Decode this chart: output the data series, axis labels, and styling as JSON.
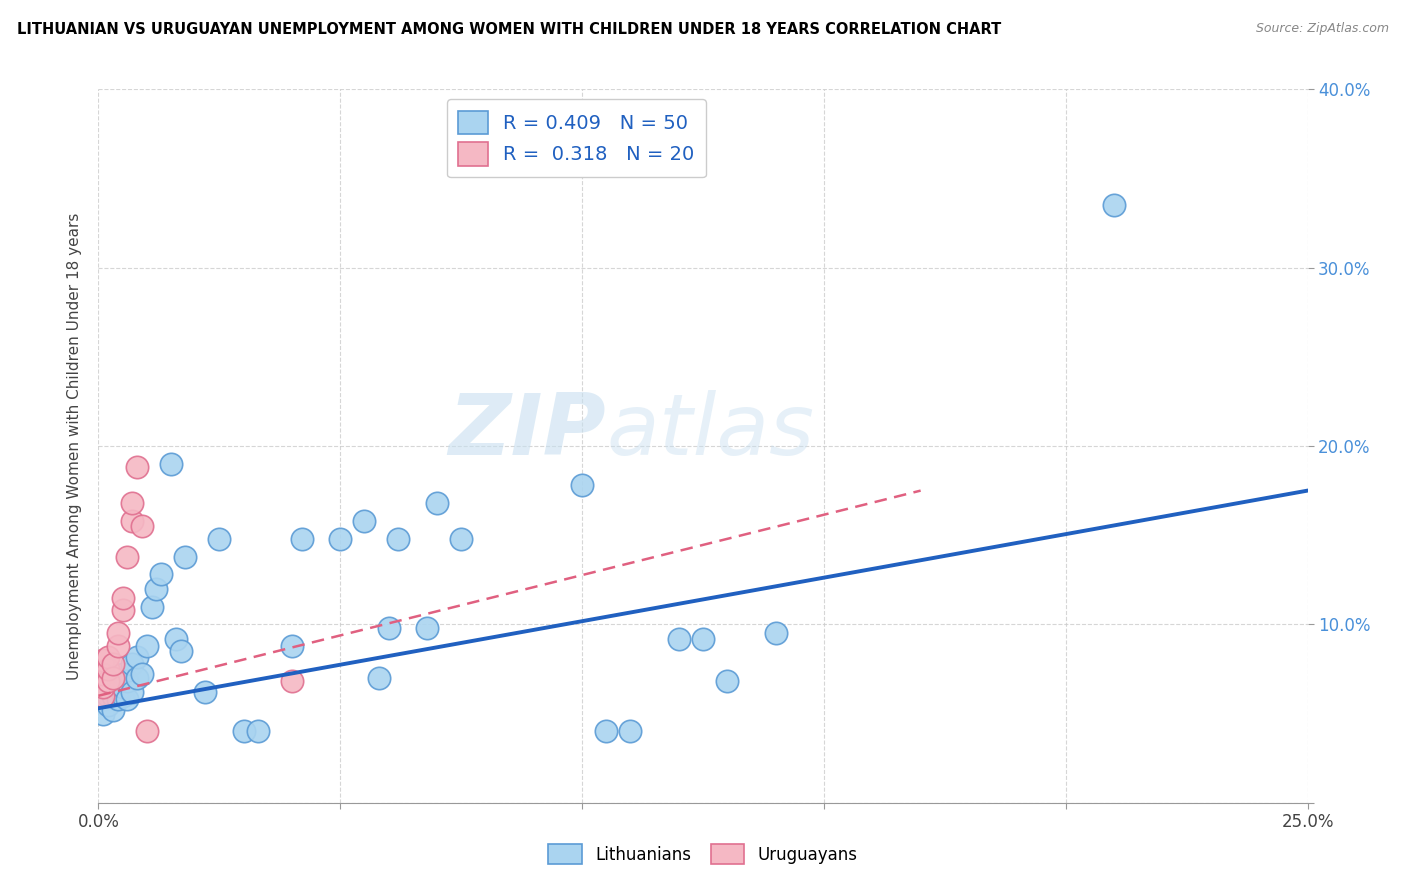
{
  "title": "LITHUANIAN VS URUGUAYAN UNEMPLOYMENT AMONG WOMEN WITH CHILDREN UNDER 18 YEARS CORRELATION CHART",
  "source": "Source: ZipAtlas.com",
  "ylabel": "Unemployment Among Women with Children Under 18 years",
  "xlim": [
    0.0,
    0.25
  ],
  "ylim": [
    0.0,
    0.4
  ],
  "legend_blue_r": "R = 0.409",
  "legend_blue_n": "N = 50",
  "legend_pink_r": "R =  0.318",
  "legend_pink_n": "N = 20",
  "blue_color": "#aad4f0",
  "pink_color": "#f5b8c4",
  "blue_edge_color": "#5b9bd5",
  "pink_edge_color": "#e07090",
  "blue_line_color": "#2060c0",
  "pink_line_color": "#e06080",
  "watermark_color": "#d5e8f5",
  "blue_x": [
    0.001,
    0.001,
    0.002,
    0.002,
    0.002,
    0.003,
    0.003,
    0.003,
    0.004,
    0.004,
    0.005,
    0.005,
    0.005,
    0.006,
    0.006,
    0.007,
    0.007,
    0.008,
    0.008,
    0.009,
    0.01,
    0.011,
    0.012,
    0.013,
    0.015,
    0.016,
    0.017,
    0.018,
    0.022,
    0.025,
    0.03,
    0.033,
    0.04,
    0.042,
    0.05,
    0.055,
    0.058,
    0.06,
    0.062,
    0.068,
    0.07,
    0.075,
    0.1,
    0.105,
    0.11,
    0.12,
    0.125,
    0.13,
    0.14,
    0.21
  ],
  "blue_y": [
    0.05,
    0.058,
    0.055,
    0.06,
    0.068,
    0.052,
    0.06,
    0.065,
    0.058,
    0.07,
    0.06,
    0.065,
    0.072,
    0.058,
    0.068,
    0.062,
    0.078,
    0.07,
    0.082,
    0.072,
    0.088,
    0.11,
    0.12,
    0.128,
    0.19,
    0.092,
    0.085,
    0.138,
    0.062,
    0.148,
    0.04,
    0.04,
    0.088,
    0.148,
    0.148,
    0.158,
    0.07,
    0.098,
    0.148,
    0.098,
    0.168,
    0.148,
    0.178,
    0.04,
    0.04,
    0.092,
    0.092,
    0.068,
    0.095,
    0.335
  ],
  "pink_x": [
    0.001,
    0.001,
    0.001,
    0.001,
    0.002,
    0.002,
    0.002,
    0.003,
    0.003,
    0.004,
    0.004,
    0.005,
    0.005,
    0.006,
    0.007,
    0.007,
    0.008,
    0.009,
    0.01,
    0.04
  ],
  "pink_y": [
    0.06,
    0.065,
    0.072,
    0.08,
    0.068,
    0.075,
    0.082,
    0.07,
    0.078,
    0.088,
    0.095,
    0.108,
    0.115,
    0.138,
    0.158,
    0.168,
    0.188,
    0.155,
    0.04,
    0.068
  ]
}
